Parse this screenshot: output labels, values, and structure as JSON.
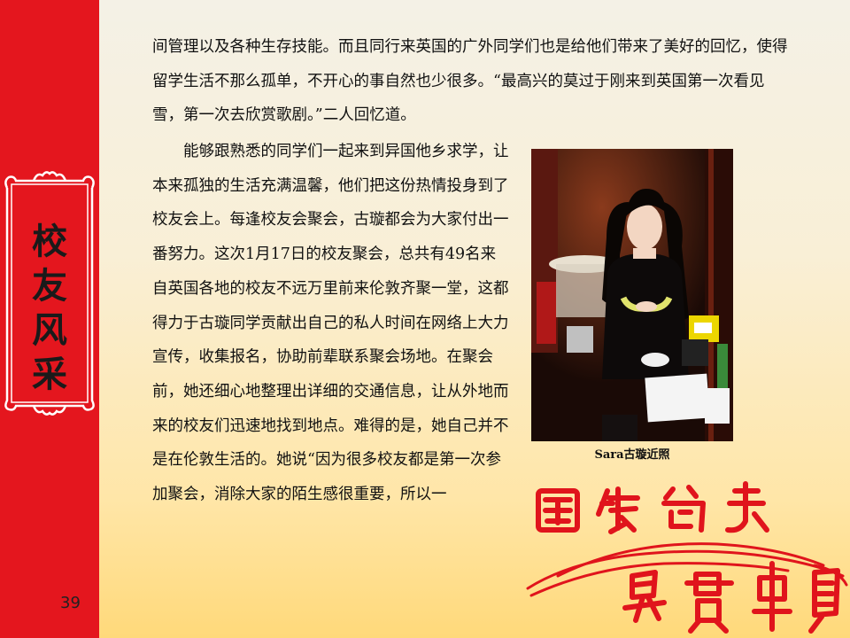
{
  "sidebar": {
    "section_title": [
      "校",
      "友",
      "风",
      "采"
    ],
    "page_number": "39"
  },
  "article": {
    "paragraph1": "间管理以及各种生存技能。而且同行来英国的广外同学们也是给他们带来了美好的回忆，使得留学生活不那么孤单，不开心的事自然也少很多。“最高兴的莫过于刚来到英国第一次看见雪，第一次去欣赏歌剧。”二人回忆道。",
    "paragraph2": "　　能够跟熟悉的同学们一起来到异国他乡求学，让本来孤独的生活充满温馨，他们把这份热情投身到了校友会上。每逢校友会聚会，古璇都会为大家付出一番努力。这次1月17日的校友聚会，总共有49名来自英国各地的校友不远万里前来伦敦齐聚一堂，这都得力于古璇同学贡献出自己的私人时间在网络上大力宣传，收集报名，协助前辈联系聚会场地。在聚会前，她还细心地整理出详细的交通信息，让从外地而来的校友们迅速地找到地点。难得的是，她自己并不是在伦敦生活的。她说“因为很多校友都是第一次参加聚会，消除大家的陌生感很重要，所以一"
  },
  "photo": {
    "caption": "Sara古璇近照"
  },
  "colors": {
    "sidebar_red": "#e4161e",
    "seal_red": "#e0141c"
  }
}
